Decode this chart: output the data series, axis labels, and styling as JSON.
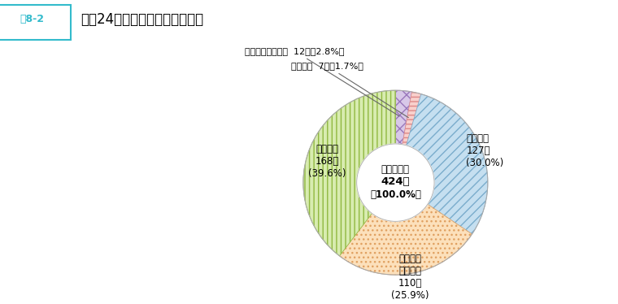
{
  "title": "平成24年度末派遣先機関別状況",
  "title_prefix": "図8-2",
  "total_line1": "派遣者総数",
  "total_line2": "424人",
  "total_line3": "（100.0%）",
  "segments": [
    {
      "name": "指令",
      "value": 12,
      "pct": "2.8",
      "color": "#d8c8e8",
      "hatch": "xx",
      "hatch_color": "#9977bb"
    },
    {
      "name": "研究所",
      "value": 7,
      "pct": "1.7",
      "color": "#f8d0cc",
      "hatch": "---",
      "hatch_color": "#dd8888"
    },
    {
      "name": "国際連合",
      "value": 127,
      "pct": "30.0",
      "color": "#c5dff0",
      "hatch": "///",
      "hatch_color": "#7aaccc"
    },
    {
      "name": "その他の国際機関",
      "value": 110,
      "pct": "25.9",
      "color": "#fce0bb",
      "hatch": "...",
      "hatch_color": "#e0a060"
    },
    {
      "name": "外国政府",
      "value": 168,
      "pct": "39.6",
      "color": "#d8ecb0",
      "hatch": "|||",
      "hatch_color": "#90b840"
    }
  ],
  "anno1": "指令で定める機関  12人（2.8%）",
  "anno2": "研究所　  7人（1.7%）",
  "bg": "#ffffff",
  "donut_inner": 0.42
}
